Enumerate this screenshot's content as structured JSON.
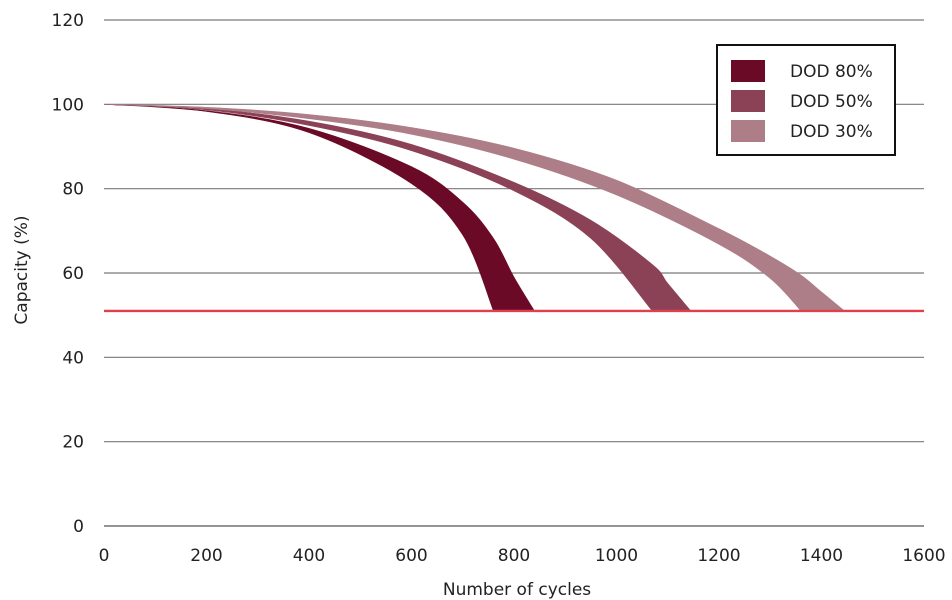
{
  "chart_data": {
    "type": "area",
    "xlabel": "Number of cycles",
    "ylabel": "Capacity (%)",
    "xlim": [
      0,
      1600
    ],
    "ylim": [
      0,
      120
    ],
    "x_ticks": [
      0,
      200,
      400,
      600,
      800,
      1000,
      1200,
      1400,
      1600
    ],
    "y_ticks": [
      0,
      20,
      40,
      60,
      80,
      100,
      120
    ],
    "grid": "horizontal",
    "legend_position": "top-right",
    "reference_line": {
      "y": 51,
      "color": "#e0404c"
    },
    "series": [
      {
        "name": "DOD 80%",
        "color": "#6b0a26",
        "band": [
          {
            "x": 0,
            "y_upper": 100,
            "y_lower": 100
          },
          {
            "x": 200,
            "y_upper": 98.3,
            "y_lower": 98.5
          },
          {
            "x": 400,
            "y_upper": 93.3,
            "y_lower": 94.3
          },
          {
            "x": 600,
            "y_upper": 81.2,
            "y_lower": 85.2
          },
          {
            "x": 700,
            "y_upper": 69.0,
            "y_lower": 76.8
          },
          {
            "x": 760,
            "y_upper": 51.0,
            "y_lower": 68.2
          },
          {
            "x": 800,
            "y_upper": 51.0,
            "y_lower": 59.0
          },
          {
            "x": 840,
            "y_upper": 51.0,
            "y_lower": 51.0
          }
        ]
      },
      {
        "name": "DOD 50%",
        "color": "#8b4256",
        "band": [
          {
            "x": 0,
            "y_upper": 100,
            "y_lower": 100
          },
          {
            "x": 200,
            "y_upper": 98.7,
            "y_lower": 99.0
          },
          {
            "x": 400,
            "y_upper": 95.0,
            "y_lower": 96.0
          },
          {
            "x": 600,
            "y_upper": 89.0,
            "y_lower": 90.5
          },
          {
            "x": 800,
            "y_upper": 79.5,
            "y_lower": 81.5
          },
          {
            "x": 950,
            "y_upper": 68.2,
            "y_lower": 72.5
          },
          {
            "x": 1070,
            "y_upper": 51.0,
            "y_lower": 62.0
          },
          {
            "x": 1100,
            "y_upper": 51.0,
            "y_lower": 57.5
          },
          {
            "x": 1145,
            "y_upper": 51.0,
            "y_lower": 51.0
          }
        ]
      },
      {
        "name": "DOD 30%",
        "color": "#ad7e87",
        "band": [
          {
            "x": 0,
            "y_upper": 100,
            "y_lower": 100
          },
          {
            "x": 200,
            "y_upper": 99.0,
            "y_lower": 99.3
          },
          {
            "x": 400,
            "y_upper": 96.6,
            "y_lower": 97.6
          },
          {
            "x": 600,
            "y_upper": 92.9,
            "y_lower": 94.5
          },
          {
            "x": 800,
            "y_upper": 87.0,
            "y_lower": 89.6
          },
          {
            "x": 1000,
            "y_upper": 78.5,
            "y_lower": 82.0
          },
          {
            "x": 1200,
            "y_upper": 66.8,
            "y_lower": 70.5
          },
          {
            "x": 1300,
            "y_upper": 58.7,
            "y_lower": 64.0
          },
          {
            "x": 1360,
            "y_upper": 51.0,
            "y_lower": 59.5
          },
          {
            "x": 1400,
            "y_upper": 51.0,
            "y_lower": 55.5
          },
          {
            "x": 1445,
            "y_upper": 51.0,
            "y_lower": 51.0
          }
        ]
      }
    ]
  }
}
